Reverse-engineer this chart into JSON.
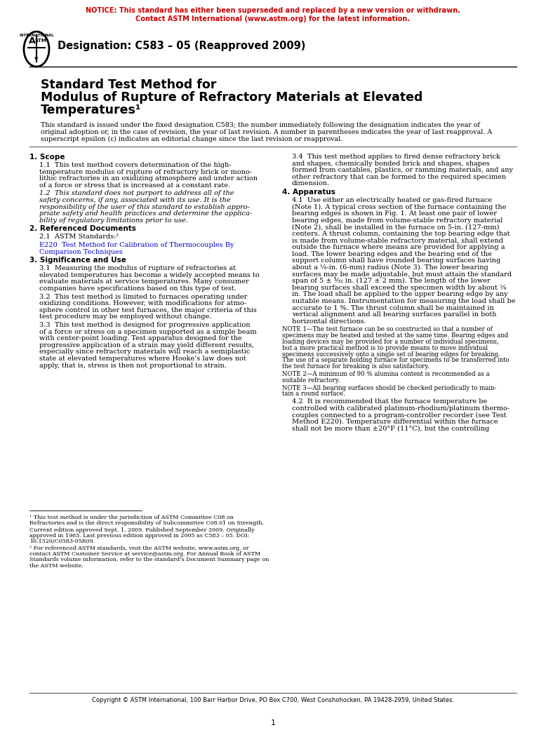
{
  "page_bg": "#ffffff",
  "notice_color": "#cc0000",
  "notice_line1": "NOTICE: This standard has either been superseded and replaced by a new version or withdrawn.",
  "notice_line2": "Contact ASTM International (www.astm.org) for the latest information.",
  "designation_text": "Designation: C583 – 05 (Reapproved 2009)",
  "title_line1": "Standard Test Method for",
  "title_line2": "Modulus of Rupture of Refractory Materials at Elevated",
  "title_line3": "Temperatures¹",
  "abstract_text_1": "This standard is issued under the fixed designation C583; the number immediately following the designation indicates the year of",
  "abstract_text_2": "original adoption or, in the case of revision, the year of last revision. A number in parentheses indicates the year of last reapproval. A",
  "abstract_text_3": "superscript epsilon (ε) indicates an editorial change since the last revision or reapproval.",
  "col1": [
    {
      "type": "heading",
      "text": "1. Scope"
    },
    {
      "type": "body",
      "indent": true,
      "text": "1.1  This test method covers determination of the high-\ntemperature modulus of rupture of refractory brick or mono-\nlithic refractories in an oxidizing atmosphere and under action\nof a force or stress that is increased at a constant rate."
    },
    {
      "type": "body_italic",
      "indent": true,
      "text": "1.2  This standard does not purport to address all of the\nsafety concerns, if any, associated with its use. It is the\nresponsibility of the user of this standard to establish appro-\npriate safety and health practices and determine the applica-\nbility of regulatory limitations prior to use."
    },
    {
      "type": "heading",
      "text": "2. Referenced Documents"
    },
    {
      "type": "body",
      "indent": true,
      "text": "2.1  ASTM Standards:²"
    },
    {
      "type": "link",
      "indent": true,
      "text": "E220  Test Method for Calibration of Thermocouples By\nComparison Techniques"
    },
    {
      "type": "heading",
      "text": "3. Significance and Use"
    },
    {
      "type": "body",
      "indent": true,
      "text": "3.1  Measuring the modulus of rupture of refractories at\nelevated temperatures has become a widely accepted means to\nevaluate materials at service temperatures. Many consumer\ncompanies have specifications based on this type of test."
    },
    {
      "type": "body",
      "indent": true,
      "text": "3.2  This test method is limited to furnaces operating under\noxidizing conditions. However, with modifications for atmo-\nsphere control in other test furnaces, the major criteria of this\ntest procedure may be employed without change."
    },
    {
      "type": "body",
      "indent": true,
      "text": "3.3  This test method is designed for progressive application\nof a force or stress on a specimen supported as a simple beam\nwith center-point loading. Test apparatus designed for the\nprogressive application of a strain may yield different results,\nespecially since refractory materials will reach a semiplastic\nstate at elevated temperatures where Hooke’s law does not\napply, that is, stress is then not proportional to strain."
    }
  ],
  "col2": [
    {
      "type": "body",
      "indent": true,
      "text": "3.4  This test method applies to fired dense refractory brick\nand shapes, chemically bonded brick and shapes, shapes\nformed from castables, plastics, or ramming materials, and any\nother refractory that can be formed to the required specimen\ndimension."
    },
    {
      "type": "heading",
      "text": "4. Apparatus"
    },
    {
      "type": "body",
      "indent": true,
      "text": "4.1  Use either an electrically heated or gas-fired furnace\n(Note 1). A typical cross section of the furnace containing the\nbearing edges is shown in Fig. 1. At least one pair of lower\nbearing edges, made from volume-stable refractory material\n(Note 2), shall be installed in the furnace on 5-in. (127-mm)\ncenters. A thrust column, containing the top bearing edge that\nis made from volume-stable refractory material, shall extend\noutside the furnace where means are provided for applying a\nload. The lower bearing edges and the bearing end of the\nsupport column shall have rounded bearing surfaces having\nabout a ¼-in. (6-mm) radius (Note 3). The lower bearing\nsurfaces may be made adjustable, but must attain the standard\nspan of 5 ± ³⁄₃₂ in. (127 ± 2 mm). The length of the lower\nbearing surfaces shall exceed the specimen width by about ¼\nin. The load shall be applied to the upper bearing edge by any\nsuitable means. Instrumentation for measuring the load shall be\naccurate to 1 %. The thrust column shall be maintained in\nvertical alignment and all bearing surfaces parallel in both\nhorizontal directions."
    },
    {
      "type": "note",
      "text": "NOTE 1—The test furnace can be so constructed so that a number of\nspecimens may be heated and tested at the same time. Bearing edges and\nloading devices may be provided for a number of individual specimens,\nbut a more practical method is to provide means to move individual\nspecimens successively onto a single set of bearing edges for breaking.\nThe use of a separate holding furnace for specimens to be transferred into\nthe test furnace for breaking is also satisfactory."
    },
    {
      "type": "note",
      "text": "NOTE 2—A minimum of 90 % alumina content is recommended as a\nsuitable refractory."
    },
    {
      "type": "note",
      "text": "NOTE 3—All bearing surfaces should be checked periodically to main-\ntain a round surface."
    },
    {
      "type": "body",
      "indent": true,
      "text": "4.2  It is recommended that the furnace temperature be\ncontrolled with calibrated platinum-rhodium/platinum thermo-\ncouples connected to a program-controller recorder (see Test\nMethod E220). Temperature differential within the furnace\nshall not be more than ±20°F (11°C), but the controlling"
    }
  ],
  "footnotes": [
    "¹ This test method is under the jurisdiction of ASTM Committee C08 on\nRefractories and is the direct responsibility of Subcommittee C08.01 on Strength.",
    "Current edition approved Sept. 1, 2009. Published September 2009. Originally\napproved in 1965. Last previous edition approved in 2005 as C583 – 05. DOI:\n10.1520/C0583-05R09.",
    "² For referenced ASTM standards, visit the ASTM website, www.astm.org, or\ncontact ASTM Customer Service at service@astm.org. For Annual Book of ASTM\nStandards volume information, refer to the standard’s Document Summary page on\nthe ASTM website."
  ],
  "copyright_text": "Copyright © ASTM International, 100 Barr Harbor Drive, PO Box C700, West Conshohocken, PA 19428-2959, United States.",
  "page_number": "1",
  "link_color": "#0000cc",
  "note1_color": "#cc0000",
  "fig1_color": "#cc0000"
}
